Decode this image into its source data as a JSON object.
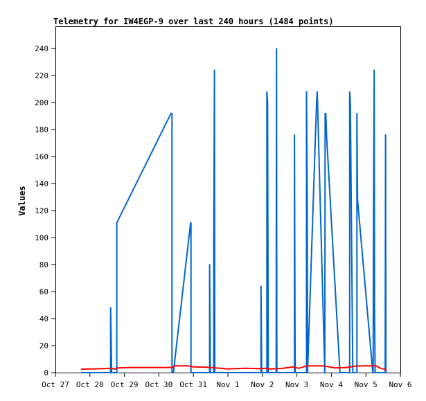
{
  "chart_data": {
    "type": "line",
    "title": "Telemetry for IW4EGP-9 over last 240 hours (1484 points)",
    "xlabel": "",
    "ylabel": "Values",
    "xlim": [
      0,
      10
    ],
    "ylim": [
      0,
      256
    ],
    "x_ticks": [
      {
        "x": 0,
        "label": "Oct 27"
      },
      {
        "x": 1,
        "label": "Oct 28"
      },
      {
        "x": 2,
        "label": "Oct 29"
      },
      {
        "x": 3,
        "label": "Oct 30"
      },
      {
        "x": 4,
        "label": "Oct 31"
      },
      {
        "x": 5,
        "label": "Nov 1"
      },
      {
        "x": 6,
        "label": "Nov 2"
      },
      {
        "x": 7,
        "label": "Nov 3"
      },
      {
        "x": 8,
        "label": "Nov 4"
      },
      {
        "x": 9,
        "label": "Nov 5"
      },
      {
        "x": 10,
        "label": "Nov 6"
      }
    ],
    "y_ticks": [
      0,
      20,
      40,
      60,
      80,
      100,
      120,
      140,
      160,
      180,
      200,
      220,
      240
    ],
    "grid": false,
    "legend": "none",
    "series": [
      {
        "color": "#0066cc",
        "points": [
          [
            0.74,
            0
          ],
          [
            1.6,
            0
          ],
          [
            1.6,
            48
          ],
          [
            1.63,
            0
          ],
          [
            1.78,
            0
          ],
          [
            1.78,
            111
          ],
          [
            1.8,
            112
          ],
          [
            3.35,
            192
          ],
          [
            3.38,
            192
          ],
          [
            3.38,
            0
          ],
          [
            3.42,
            0
          ],
          [
            3.92,
            111
          ],
          [
            3.93,
            111
          ],
          [
            3.93,
            0
          ],
          [
            4.47,
            0
          ],
          [
            4.47,
            80
          ],
          [
            4.49,
            0
          ],
          [
            4.59,
            0
          ],
          [
            4.59,
            97
          ],
          [
            4.61,
            224
          ],
          [
            4.62,
            0
          ],
          [
            5.96,
            0
          ],
          [
            5.96,
            64
          ],
          [
            5.98,
            0
          ],
          [
            6.13,
            0
          ],
          [
            6.13,
            208
          ],
          [
            6.15,
            200
          ],
          [
            6.17,
            0
          ],
          [
            6.4,
            0
          ],
          [
            6.41,
            240
          ],
          [
            6.42,
            0
          ],
          [
            6.93,
            0
          ],
          [
            6.93,
            176
          ],
          [
            6.95,
            0
          ],
          [
            7.28,
            0
          ],
          [
            7.28,
            208
          ],
          [
            7.3,
            128
          ],
          [
            7.31,
            0
          ],
          [
            7.57,
            200
          ],
          [
            7.59,
            208
          ],
          [
            7.81,
            0
          ],
          [
            7.82,
            192
          ],
          [
            7.84,
            192
          ],
          [
            7.86,
            176
          ],
          [
            8.25,
            0
          ],
          [
            8.53,
            0
          ],
          [
            8.53,
            208
          ],
          [
            8.55,
            200
          ],
          [
            8.62,
            0
          ],
          [
            8.74,
            0
          ],
          [
            8.74,
            192
          ],
          [
            8.76,
            128
          ],
          [
            9.2,
            0
          ],
          [
            9.21,
            0
          ],
          [
            9.22,
            112
          ],
          [
            9.24,
            224
          ],
          [
            9.25,
            48
          ],
          [
            9.27,
            0
          ],
          [
            9.56,
            0
          ],
          [
            9.57,
            176
          ],
          [
            9.58,
            0
          ]
        ]
      },
      {
        "color": "#ff0000",
        "points": [
          [
            0.74,
            2.5
          ],
          [
            1.0,
            2.7
          ],
          [
            1.4,
            3.0
          ],
          [
            1.6,
            3.2
          ],
          [
            1.72,
            2.6
          ],
          [
            1.8,
            3.5
          ],
          [
            2.2,
            3.8
          ],
          [
            2.7,
            3.8
          ],
          [
            3.2,
            3.8
          ],
          [
            3.38,
            3.8
          ],
          [
            3.45,
            5.0
          ],
          [
            3.85,
            5.0
          ],
          [
            4.0,
            4.2
          ],
          [
            4.4,
            4.0
          ],
          [
            4.75,
            3.3
          ],
          [
            5.0,
            2.7
          ],
          [
            5.2,
            3.0
          ],
          [
            5.5,
            3.2
          ],
          [
            5.9,
            3.0
          ],
          [
            6.1,
            3.2
          ],
          [
            6.2,
            2.6
          ],
          [
            6.6,
            3.2
          ],
          [
            6.9,
            4.2
          ],
          [
            7.05,
            3.2
          ],
          [
            7.3,
            5.0
          ],
          [
            7.7,
            5.0
          ],
          [
            7.82,
            4.8
          ],
          [
            8.1,
            3.5
          ],
          [
            8.45,
            3.8
          ],
          [
            8.7,
            4.8
          ],
          [
            9.0,
            5.0
          ],
          [
            9.3,
            5.0
          ],
          [
            9.4,
            3.5
          ],
          [
            9.6,
            2.0
          ]
        ]
      }
    ]
  }
}
